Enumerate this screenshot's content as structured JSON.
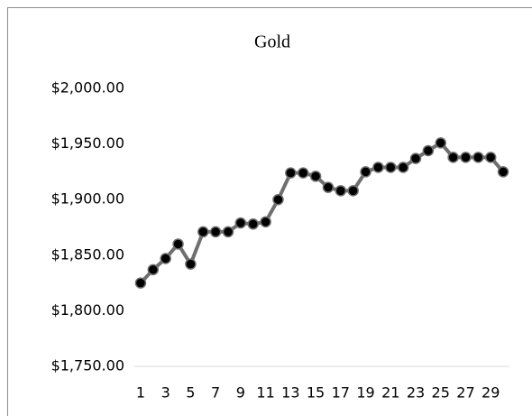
{
  "chart_data": {
    "type": "line",
    "title": "Gold",
    "categories": [
      "1",
      null,
      "3",
      null,
      "5",
      null,
      "7",
      null,
      "9",
      null,
      "11",
      null,
      "13",
      null,
      "15",
      null,
      "17",
      null,
      "19",
      null,
      "21",
      null,
      "23",
      null,
      "25",
      null,
      "27",
      null,
      "29",
      null
    ],
    "series": [
      {
        "name": "Gold",
        "color": "#6f6f6f",
        "marker_color": "#000000",
        "values": [
          1825,
          1837,
          1847,
          1860,
          1842,
          1871,
          1871,
          1871,
          1879,
          1878,
          1880,
          1900,
          1924,
          1924,
          1921,
          1911,
          1908,
          1908,
          1925,
          1929,
          1929,
          1929,
          1937,
          1944,
          1951,
          1938,
          1938,
          1938,
          1938,
          1925
        ]
      }
    ],
    "ylim": [
      1750,
      2000
    ],
    "yticks": [
      {
        "value": 1750,
        "label": "$1,750.00"
      },
      {
        "value": 1800,
        "label": "$1,800.00"
      },
      {
        "value": 1850,
        "label": "$1,850.00"
      },
      {
        "value": 1900,
        "label": "$1,900.00"
      },
      {
        "value": 1950,
        "label": "$1,950.00"
      },
      {
        "value": 2000,
        "label": "$2,000.00"
      }
    ],
    "grid": false,
    "legend": false
  }
}
